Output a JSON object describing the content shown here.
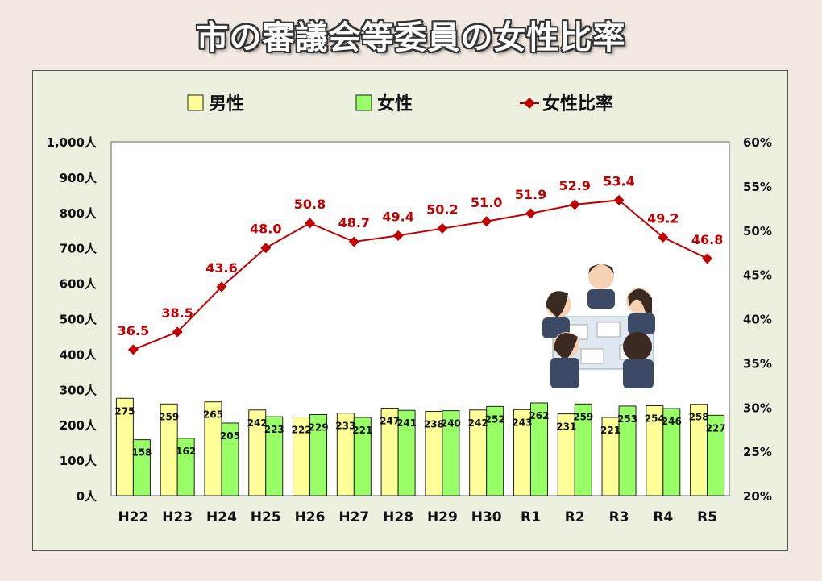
{
  "page": {
    "title": "市の審議会等委員の女性比率"
  },
  "legend": [
    {
      "label": "男性",
      "color": "#ffff99",
      "marker": "square"
    },
    {
      "label": "女性",
      "color": "#99ff66",
      "marker": "square"
    },
    {
      "label": "女性比率",
      "color": "#c00000",
      "marker": "diamond-line"
    }
  ],
  "colors": {
    "male_fill": "#ffff99",
    "female_fill": "#99ff66",
    "ratio_line": "#c00000",
    "bar_border": "#222222"
  },
  "chart_data": {
    "type": "bar",
    "categories": [
      "H22",
      "H23",
      "H24",
      "H25",
      "H26",
      "H27",
      "H28",
      "H29",
      "H30",
      "R1",
      "R2",
      "R3",
      "R4",
      "R5"
    ],
    "series": [
      {
        "name": "男性",
        "type": "bar",
        "axis": "left",
        "values": [
          275,
          259,
          265,
          242,
          222,
          233,
          247,
          238,
          242,
          243,
          231,
          221,
          254,
          258
        ]
      },
      {
        "name": "女性",
        "type": "bar",
        "axis": "left",
        "values": [
          158,
          162,
          205,
          223,
          229,
          221,
          241,
          240,
          252,
          262,
          259,
          253,
          246,
          227
        ]
      },
      {
        "name": "女性比率",
        "type": "line",
        "axis": "right",
        "values": [
          36.5,
          38.5,
          43.6,
          48.0,
          50.8,
          48.7,
          49.4,
          50.2,
          51.0,
          51.9,
          52.9,
          53.4,
          49.2,
          46.8
        ],
        "labels": [
          "36.5",
          "38.5",
          "43.6",
          "48.0",
          "50.8",
          "48.7",
          "49.4",
          "50.2",
          "51.0",
          "51.9",
          "52.9",
          "53.4",
          "49.2",
          "46.8"
        ]
      }
    ],
    "y_left": {
      "ylim": [
        0,
        1000
      ],
      "ticks": [
        "0人",
        "100人",
        "200人",
        "300人",
        "400人",
        "500人",
        "600人",
        "700人",
        "800人",
        "900人",
        "1,000人"
      ]
    },
    "y_right": {
      "ylim": [
        20,
        60
      ],
      "ticks": [
        "20%",
        "25%",
        "30%",
        "35%",
        "40%",
        "45%",
        "50%",
        "55%",
        "60%"
      ]
    },
    "legend_position": "top",
    "grid": false
  }
}
